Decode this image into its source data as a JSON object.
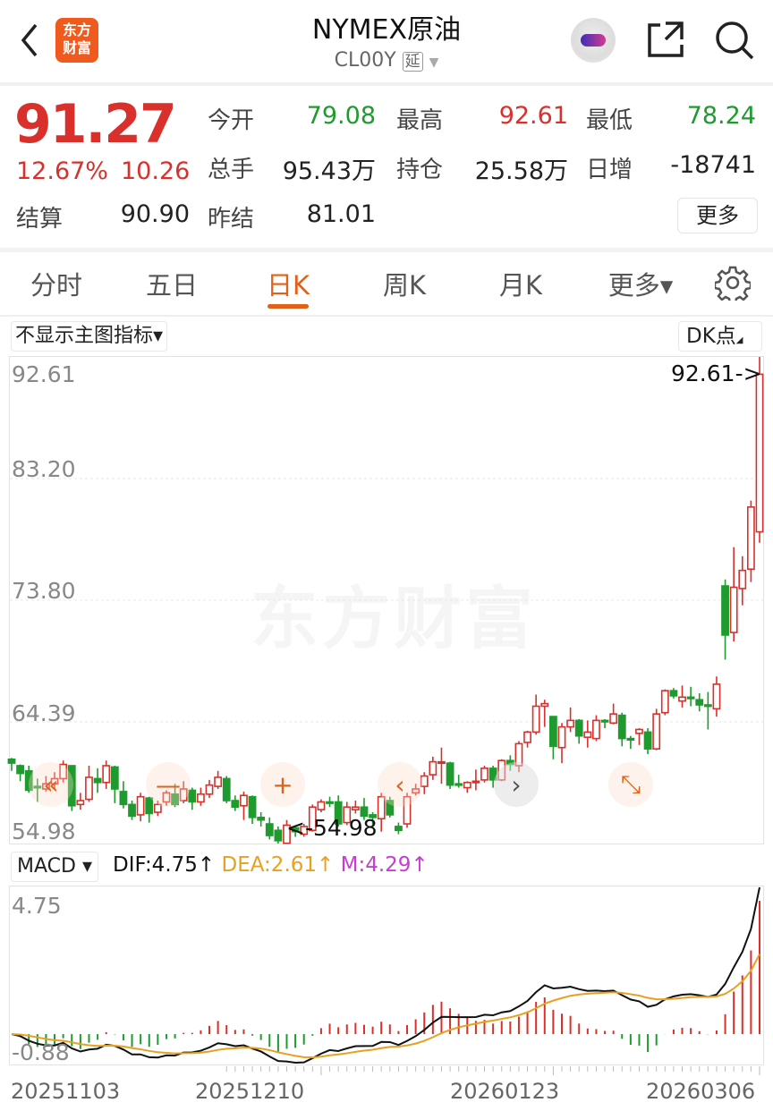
{
  "header": {
    "title": "NYMEX原油",
    "code": "CL00Y",
    "delay_badge": "延",
    "logo_text": [
      "东方",
      "财富"
    ],
    "icons": [
      "back-icon",
      "logo",
      "robot-avatar",
      "share-icon",
      "search-icon"
    ]
  },
  "quote": {
    "price": "91.27",
    "change_pct": "12.67%",
    "change": "10.26",
    "settle_label": "结算",
    "settle": "90.90",
    "fields": [
      {
        "label": "今开",
        "value": "79.08",
        "color": "green"
      },
      {
        "label": "最高",
        "value": "92.61",
        "color": "red"
      },
      {
        "label": "最低",
        "value": "78.24",
        "color": "green"
      },
      {
        "label": "总手",
        "value": "95.43万",
        "color": "black"
      },
      {
        "label": "持仓",
        "value": "25.58万",
        "color": "black"
      },
      {
        "label": "日增",
        "value": "-18741",
        "color": "black"
      },
      {
        "label": "昨结",
        "value": "81.01",
        "color": "black"
      }
    ],
    "more_label": "更多"
  },
  "tabs": [
    {
      "label": "分时"
    },
    {
      "label": "五日"
    },
    {
      "label": "日K",
      "active": true
    },
    {
      "label": "周K"
    },
    {
      "label": "月K"
    },
    {
      "label": "更多▾"
    }
  ],
  "toolbar": {
    "indicator_select": "不显示主图指标▾",
    "dk_label": "DK点"
  },
  "kline": {
    "axis_labels": [
      "92.61",
      "83.20",
      "73.80",
      "64.39",
      "54.98"
    ],
    "high_marker": "92.61->",
    "low_marker": "<-54.98",
    "watermark": "东方财富",
    "controls": [
      "«",
      "—",
      "+",
      "‹",
      "›",
      "⤡"
    ]
  },
  "macd": {
    "selector": "MACD ▾",
    "dif": "DIF:4.75↑",
    "dea": "DEA:2.61↑",
    "m": "M:4.29↑",
    "axis_top": "4.75",
    "axis_bottom": "-0.88"
  },
  "dates": [
    "20251103",
    "20251210",
    "20260123",
    "20260306"
  ],
  "colors": {
    "up": "#d9302c",
    "down": "#1f9a2e",
    "accent": "#e0621a",
    "dea": "#e8a020",
    "m": "#c83cd0"
  },
  "chart_data": {
    "type": "candlestick",
    "ylim": [
      54.98,
      92.61
    ],
    "x_ticks": [
      "20251103",
      "20251210",
      "20260123",
      "20260306"
    ],
    "ohlc": [
      [
        61.5,
        61.2,
        61.6,
        60.6
      ],
      [
        61.0,
        60.4,
        61.1,
        59.8
      ],
      [
        60.6,
        59.1,
        61.0,
        58.9
      ],
      [
        59.4,
        59.3,
        60.0,
        58.2
      ],
      [
        59.2,
        59.6,
        60.2,
        59.0
      ],
      [
        59.6,
        60.0,
        60.5,
        59.2
      ],
      [
        60.0,
        61.1,
        61.4,
        59.7
      ],
      [
        61.0,
        57.9,
        61.0,
        57.5
      ],
      [
        58.0,
        58.3,
        58.9,
        57.6
      ],
      [
        58.4,
        60.1,
        61.0,
        58.2
      ],
      [
        60.0,
        59.7,
        60.8,
        58.9
      ],
      [
        59.7,
        61.0,
        61.4,
        59.2
      ],
      [
        60.9,
        59.2,
        61.0,
        58.1
      ],
      [
        59.0,
        58.0,
        59.8,
        57.7
      ],
      [
        58.0,
        57.1,
        58.3,
        56.8
      ],
      [
        57.2,
        58.6,
        58.9,
        56.7
      ],
      [
        58.5,
        57.3,
        58.6,
        56.6
      ],
      [
        57.4,
        58.0,
        58.3,
        57.1
      ],
      [
        58.2,
        58.9,
        59.1,
        57.9
      ],
      [
        58.8,
        58.0,
        59.6,
        57.8
      ],
      [
        58.3,
        59.2,
        59.8,
        58.1
      ],
      [
        59.1,
        58.2,
        59.3,
        57.6
      ],
      [
        58.2,
        58.8,
        59.3,
        57.9
      ],
      [
        58.8,
        59.5,
        59.9,
        58.5
      ],
      [
        59.4,
        60.1,
        60.6,
        59.2
      ],
      [
        60.0,
        58.3,
        60.2,
        58.1
      ],
      [
        58.3,
        57.8,
        58.7,
        57.5
      ],
      [
        57.9,
        58.7,
        59.0,
        56.8
      ],
      [
        58.6,
        57.0,
        58.7,
        56.5
      ],
      [
        57.0,
        56.8,
        57.4,
        56.3
      ],
      [
        56.5,
        55.6,
        57.0,
        55.3
      ],
      [
        56.0,
        55.2,
        56.3,
        54.98
      ],
      [
        55.0,
        56.4,
        56.8,
        54.98
      ],
      [
        56.2,
        55.9,
        56.3,
        55.5
      ],
      [
        55.7,
        56.3,
        56.5,
        55.5
      ],
      [
        56.0,
        57.8,
        58.0,
        55.9
      ],
      [
        57.6,
        58.2,
        58.4,
        57.4
      ],
      [
        58.2,
        58.1,
        58.6,
        57.8
      ],
      [
        58.2,
        56.5,
        58.7,
        56.3
      ],
      [
        56.6,
        57.8,
        58.2,
        56.4
      ],
      [
        57.6,
        57.8,
        58.3,
        57.3
      ],
      [
        57.8,
        57.1,
        58.5,
        56.8
      ],
      [
        57.2,
        57.0,
        57.4,
        56.2
      ],
      [
        56.9,
        58.6,
        58.9,
        55.9
      ],
      [
        58.3,
        57.2,
        58.6,
        57.0
      ],
      [
        56.3,
        56.0,
        56.6,
        55.7
      ],
      [
        56.5,
        58.6,
        58.9,
        56.2
      ],
      [
        58.9,
        59.2,
        59.6,
        58.7
      ],
      [
        59.4,
        60.2,
        60.5,
        58.8
      ],
      [
        60.3,
        61.3,
        61.7,
        59.9
      ],
      [
        61.2,
        61.3,
        62.4,
        59.6
      ],
      [
        61.2,
        59.5,
        61.3,
        59.2
      ],
      [
        59.6,
        59.5,
        60.3,
        59.3
      ],
      [
        59.3,
        59.7,
        59.8,
        58.9
      ],
      [
        59.7,
        59.8,
        60.7,
        59.1
      ],
      [
        59.9,
        60.8,
        61.0,
        59.7
      ],
      [
        60.8,
        59.9,
        61.0,
        59.3
      ],
      [
        59.9,
        61.4,
        61.5,
        59.8
      ],
      [
        61.4,
        61.1,
        61.8,
        60.6
      ],
      [
        61.0,
        62.7,
        62.9,
        60.5
      ],
      [
        62.8,
        63.6,
        63.7,
        62.4
      ],
      [
        63.6,
        65.6,
        66.5,
        63.4
      ],
      [
        65.6,
        65.8,
        66.1,
        64.0
      ],
      [
        64.8,
        62.5,
        64.8,
        61.5
      ],
      [
        62.4,
        64.0,
        64.3,
        61.2
      ],
      [
        64.0,
        64.5,
        65.5,
        63.6
      ],
      [
        64.5,
        63.3,
        64.6,
        62.7
      ],
      [
        63.2,
        63.6,
        64.5,
        62.4
      ],
      [
        63.1,
        64.5,
        64.9,
        62.9
      ],
      [
        64.5,
        64.4,
        64.6,
        63.9
      ],
      [
        64.3,
        65.0,
        65.8,
        64.2
      ],
      [
        64.9,
        63.1,
        65.1,
        62.5
      ],
      [
        63.1,
        63.0,
        63.3,
        62.3
      ],
      [
        63.5,
        63.8,
        63.9,
        62.6
      ],
      [
        63.6,
        62.3,
        63.9,
        61.9
      ],
      [
        62.3,
        65.0,
        65.4,
        62.2
      ],
      [
        65.1,
        66.8,
        66.9,
        64.9
      ],
      [
        66.8,
        66.4,
        67.0,
        66.2
      ],
      [
        66.0,
        66.3,
        67.2,
        65.5
      ],
      [
        66.3,
        66.2,
        67.1,
        65.6
      ],
      [
        66.1,
        65.7,
        66.6,
        65.2
      ],
      [
        65.7,
        65.6,
        66.7,
        63.8
      ],
      [
        65.4,
        67.3,
        67.9,
        64.8
      ],
      [
        74.9,
        71.1,
        75.4,
        69.2
      ],
      [
        71.3,
        74.8,
        77.9,
        70.6
      ],
      [
        74.7,
        76.1,
        77.2,
        73.4
      ],
      [
        76.2,
        81.0,
        81.5,
        75.2
      ],
      [
        79.08,
        91.27,
        92.61,
        78.24
      ]
    ]
  }
}
